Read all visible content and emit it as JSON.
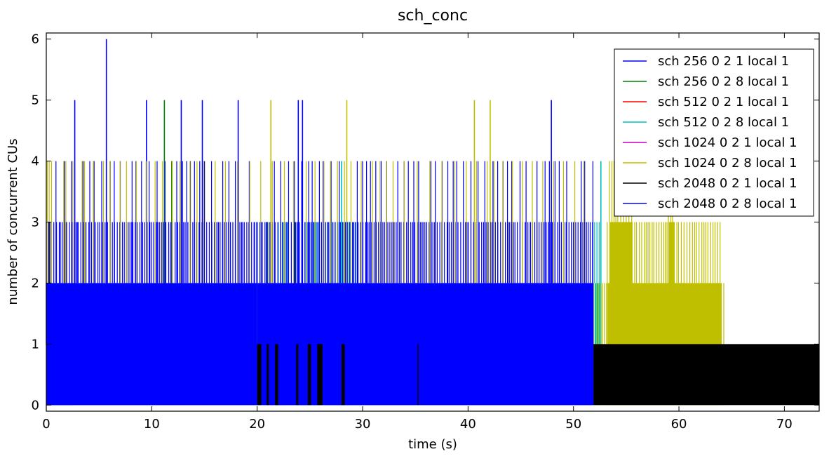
{
  "chart_data": {
    "type": "line",
    "title": "sch_conc",
    "xlabel": "time (s)",
    "ylabel": "number of concurrent CUs",
    "xlim": [
      0,
      73.3
    ],
    "ylim": [
      -0.1,
      6.1
    ],
    "x_ticks": [
      0,
      10,
      20,
      30,
      40,
      50,
      60,
      70
    ],
    "y_ticks": [
      0,
      1,
      2,
      3,
      4,
      5,
      6
    ],
    "grid": false,
    "legend_position": "top-right",
    "series": [
      {
        "name": "sch 256 0 2 1 local 1",
        "color": "#0000ff",
        "segments": [
          [
            0.0,
            2.5,
            2
          ],
          [
            2.7,
            2.7,
            5
          ],
          [
            8.7,
            8.7,
            1
          ]
        ]
      },
      {
        "name": "sch 256 0 2 8 local 1",
        "color": "#008000",
        "segments": [
          [
            11.2,
            11.2,
            5
          ],
          [
            11.9,
            11.9,
            4
          ],
          [
            21.0,
            21.0,
            3
          ],
          [
            23.6,
            23.6,
            3
          ],
          [
            25.4,
            25.4,
            3
          ]
        ]
      },
      {
        "name": "sch 512 0 2 1 local 1",
        "color": "#ff0000",
        "segments": []
      },
      {
        "name": "sch 512 0 2 8 local 1",
        "color": "#00bfbf",
        "segments": [
          [
            20.0,
            20.5,
            3
          ],
          [
            22.0,
            23.0,
            3
          ],
          [
            24.0,
            26.0,
            3
          ],
          [
            26.5,
            29.5,
            3
          ],
          [
            28.0,
            28.0,
            4
          ],
          [
            52.0,
            52.6,
            3
          ],
          [
            52.6,
            52.6,
            4
          ]
        ]
      },
      {
        "name": "sch 1024 0 2 1 local 1",
        "color": "#bf00bf",
        "segments": []
      },
      {
        "name": "sch 1024 0 2 8 local 1",
        "color": "#bfbf00",
        "segments": [
          [
            0.1,
            0.4,
            4
          ],
          [
            1.7,
            2.0,
            4
          ],
          [
            3.4,
            3.7,
            4
          ],
          [
            21.3,
            21.3,
            5
          ],
          [
            28.5,
            28.5,
            5
          ],
          [
            40.6,
            40.6,
            5
          ],
          [
            42.1,
            42.1,
            5
          ],
          [
            51.9,
            64.3,
            2
          ],
          [
            53.2,
            64.0,
            3
          ],
          [
            53.4,
            55.6,
            4
          ],
          [
            59.0,
            59.6,
            4
          ]
        ]
      },
      {
        "name": "sch 2048 0 2 1 local 1",
        "color": "#000000",
        "segments": [
          [
            20.0,
            20.4,
            1
          ],
          [
            20.9,
            21.1,
            1
          ],
          [
            21.7,
            22.0,
            1
          ],
          [
            23.7,
            23.9,
            1
          ],
          [
            24.8,
            25.1,
            1
          ],
          [
            25.7,
            26.2,
            1
          ],
          [
            28.0,
            28.3,
            1
          ],
          [
            35.2,
            35.3,
            1
          ],
          [
            51.9,
            73.3,
            1
          ]
        ]
      },
      {
        "name": "sch 2048 0 2 8 local 1",
        "color": "#0000ff",
        "segments": [
          [
            0.0,
            20.0,
            2
          ],
          [
            0.0,
            20.0,
            3
          ],
          [
            5.7,
            5.7,
            6
          ],
          [
            18.2,
            18.2,
            5
          ],
          [
            12.8,
            12.8,
            5
          ],
          [
            9.5,
            9.5,
            5
          ],
          [
            14.8,
            14.8,
            5
          ],
          [
            20.0,
            51.9,
            3
          ],
          [
            20.5,
            51.9,
            2
          ],
          [
            23.9,
            23.9,
            5
          ],
          [
            24.3,
            24.3,
            5
          ],
          [
            47.9,
            47.9,
            5
          ]
        ]
      }
    ]
  }
}
